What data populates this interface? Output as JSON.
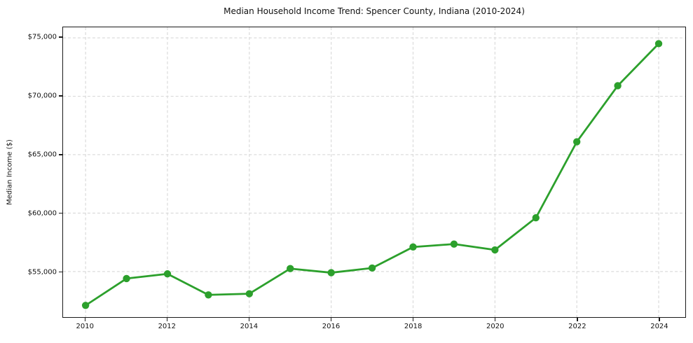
{
  "chart_data": {
    "type": "line",
    "title": "Median Household Income Trend: Spencer County, Indiana (2010-2024)",
    "xlabel": "",
    "ylabel": "Median Income ($)",
    "series_name": "Median household income",
    "x": [
      2010,
      2011,
      2012,
      2013,
      2014,
      2015,
      2016,
      2017,
      2018,
      2019,
      2020,
      2021,
      2022,
      2023,
      2024
    ],
    "values": [
      52100,
      54400,
      54800,
      53000,
      53100,
      55250,
      54900,
      55300,
      57100,
      57350,
      56850,
      59600,
      66100,
      70900,
      74500
    ],
    "xlim": [
      2009.45,
      2024.65
    ],
    "ylim": [
      51100,
      75900
    ],
    "x_ticks": [
      2010,
      2012,
      2014,
      2016,
      2018,
      2020,
      2022,
      2024
    ],
    "x_tick_labels": [
      "2010",
      "2012",
      "2014",
      "2016",
      "2018",
      "2020",
      "2022",
      "2024"
    ],
    "y_ticks": [
      55000,
      60000,
      65000,
      70000,
      75000
    ],
    "y_tick_labels": [
      "$55,000",
      "$60,000",
      "$65,000",
      "$70,000",
      "$75,000"
    ],
    "grid": true,
    "grid_style": "dashed",
    "legend": "none",
    "line_color": "#2ca02c",
    "marker_color": "#2ca02c",
    "grid_color": "#d8d8d8",
    "axis_color": "#1a1a1a",
    "background": "#ffffff"
  }
}
